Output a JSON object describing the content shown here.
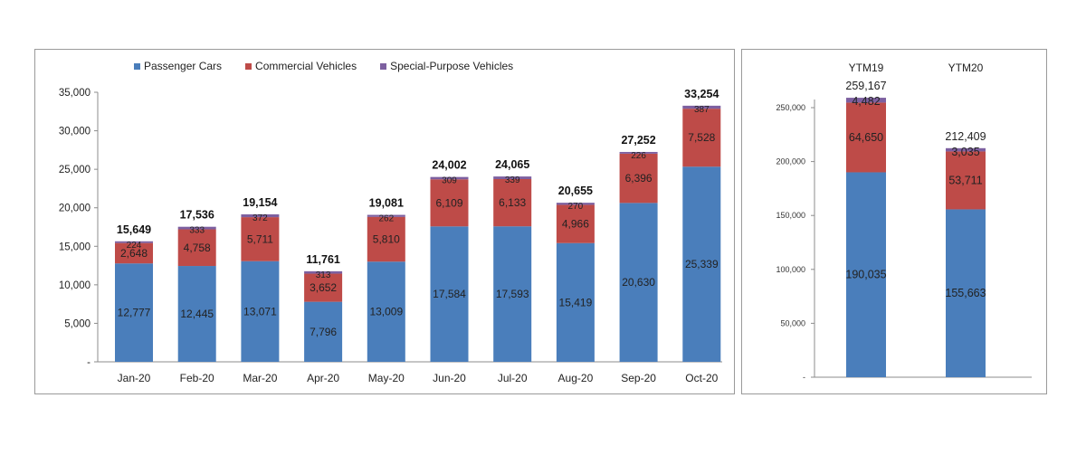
{
  "chart_data": [
    {
      "type": "bar",
      "stacked": true,
      "categories": [
        "Jan-20",
        "Feb-20",
        "Mar-20",
        "Apr-20",
        "May-20",
        "Jun-20",
        "Jul-20",
        "Aug-20",
        "Sep-20",
        "Oct-20"
      ],
      "series": [
        {
          "name": "Passenger Cars",
          "color": "#4a7ebb",
          "values": [
            12777,
            12445,
            13071,
            7796,
            13009,
            17584,
            17593,
            15419,
            20630,
            25339
          ],
          "labels": [
            "12,777",
            "12,445",
            "13,071",
            "7,796",
            "13,009",
            "17,584",
            "17,593",
            "15,419",
            "20,630",
            "25,339"
          ]
        },
        {
          "name": "Commercial Vehicles",
          "color": "#be4b48",
          "values": [
            2648,
            4758,
            5711,
            3652,
            5810,
            6109,
            6133,
            4966,
            6396,
            7528
          ],
          "labels": [
            "2,648",
            "4,758",
            "5,711",
            "3,652",
            "5,810",
            "6,109",
            "6,133",
            "4,966",
            "6,396",
            "7,528"
          ]
        },
        {
          "name": "Special-Purpose Vehicles",
          "color": "#7d60a0",
          "values": [
            224,
            333,
            372,
            313,
            262,
            309,
            339,
            270,
            226,
            387
          ],
          "labels": [
            "224",
            "333",
            "372",
            "313",
            "262",
            "309",
            "339",
            "270",
            "226",
            "387"
          ]
        }
      ],
      "totals": [
        "15,649",
        "17,536",
        "19,154",
        "11,761",
        "19,081",
        "24,002",
        "24,065",
        "20,655",
        "27,252",
        "33,254"
      ],
      "ylim": [
        0,
        35000
      ],
      "yticks": [
        0,
        5000,
        10000,
        15000,
        20000,
        25000,
        30000,
        35000
      ],
      "ytick_labels": [
        "-",
        "5,000",
        "10,000",
        "15,000",
        "20,000",
        "25,000",
        "30,000",
        "35,000"
      ],
      "legend": "top",
      "grid": false
    },
    {
      "type": "bar",
      "stacked": true,
      "categories": [
        "YTM19",
        "YTM20"
      ],
      "series": [
        {
          "name": "Passenger Cars",
          "color": "#4a7ebb",
          "values": [
            190035,
            155663
          ],
          "labels": [
            "190,035",
            "155,663"
          ]
        },
        {
          "name": "Commercial Vehicles",
          "color": "#be4b48",
          "values": [
            64650,
            53711
          ],
          "labels": [
            "64,650",
            "53,711"
          ]
        },
        {
          "name": "Special-Purpose Vehicles",
          "color": "#7d60a0",
          "values": [
            4482,
            3035
          ],
          "labels": [
            "4,482",
            "3,035"
          ]
        }
      ],
      "totals": [
        "259,167",
        "212,409"
      ],
      "ylim": [
        0,
        270000
      ],
      "yticks": [
        0,
        50000,
        100000,
        150000,
        200000,
        250000
      ],
      "ytick_labels": [
        "-",
        "50,000",
        "100,000",
        "150,000",
        "200,000",
        "250,000"
      ],
      "grid": false
    }
  ]
}
